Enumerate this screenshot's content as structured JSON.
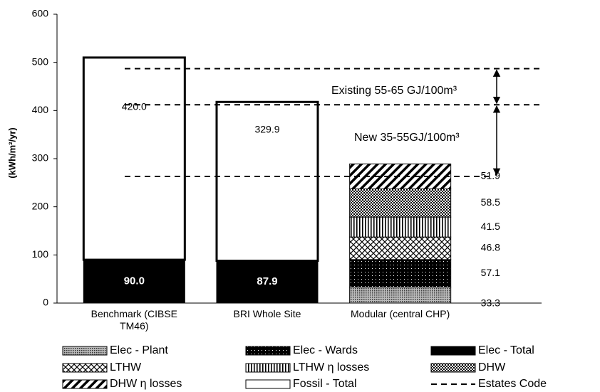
{
  "chart_data": {
    "type": "stacked-bar",
    "ylabel": "(kWh/m²/yr)",
    "categories": [
      "Benchmark (CIBSE TM46)",
      "BRI Whole Site",
      "Modular (central CHP)"
    ],
    "series": [
      {
        "name": "Elec - Plant",
        "color": "#8c8c8c",
        "pattern": "fine",
        "values": [
          null,
          null,
          33.3
        ]
      },
      {
        "name": "Elec - Wards",
        "color": "#000000",
        "pattern": "dots",
        "values": [
          null,
          null,
          57.1
        ]
      },
      {
        "name": "Elec - Total",
        "color": "#000000",
        "values": [
          90,
          87.9,
          null
        ],
        "value_labels": [
          "90.0",
          "87.9",
          null
        ]
      },
      {
        "name": "LTHW",
        "color": "#ffffff",
        "pattern": "cross",
        "values": [
          null,
          null,
          46.8
        ]
      },
      {
        "name": "LTHW η losses",
        "color": "#ffffff",
        "pattern": "vstripe",
        "values": [
          null,
          null,
          41.5
        ]
      },
      {
        "name": "DHW",
        "color": "#ffffff",
        "pattern": "checker",
        "values": [
          null,
          null,
          58.5
        ]
      },
      {
        "name": "DHW η losses",
        "color": "#ffffff",
        "pattern": "diag",
        "values": [
          null,
          null,
          51.9
        ]
      },
      {
        "name": "Fossil - Total",
        "color": "#ffffff",
        "values": [
          420,
          329.9,
          null
        ],
        "value_labels": [
          "420.0",
          "329.9",
          null
        ]
      }
    ],
    "reference_lines": {
      "name": "Estates Code",
      "color": "#000000",
      "values": [
        263,
        412,
        487
      ]
    },
    "annotations": [
      "Existing 55-65 GJ/100m³",
      "New 35-55GJ/100m³"
    ],
    "ylim": [
      0,
      600
    ],
    "yticks": [
      0,
      100,
      200,
      300,
      400,
      500,
      600
    ]
  }
}
